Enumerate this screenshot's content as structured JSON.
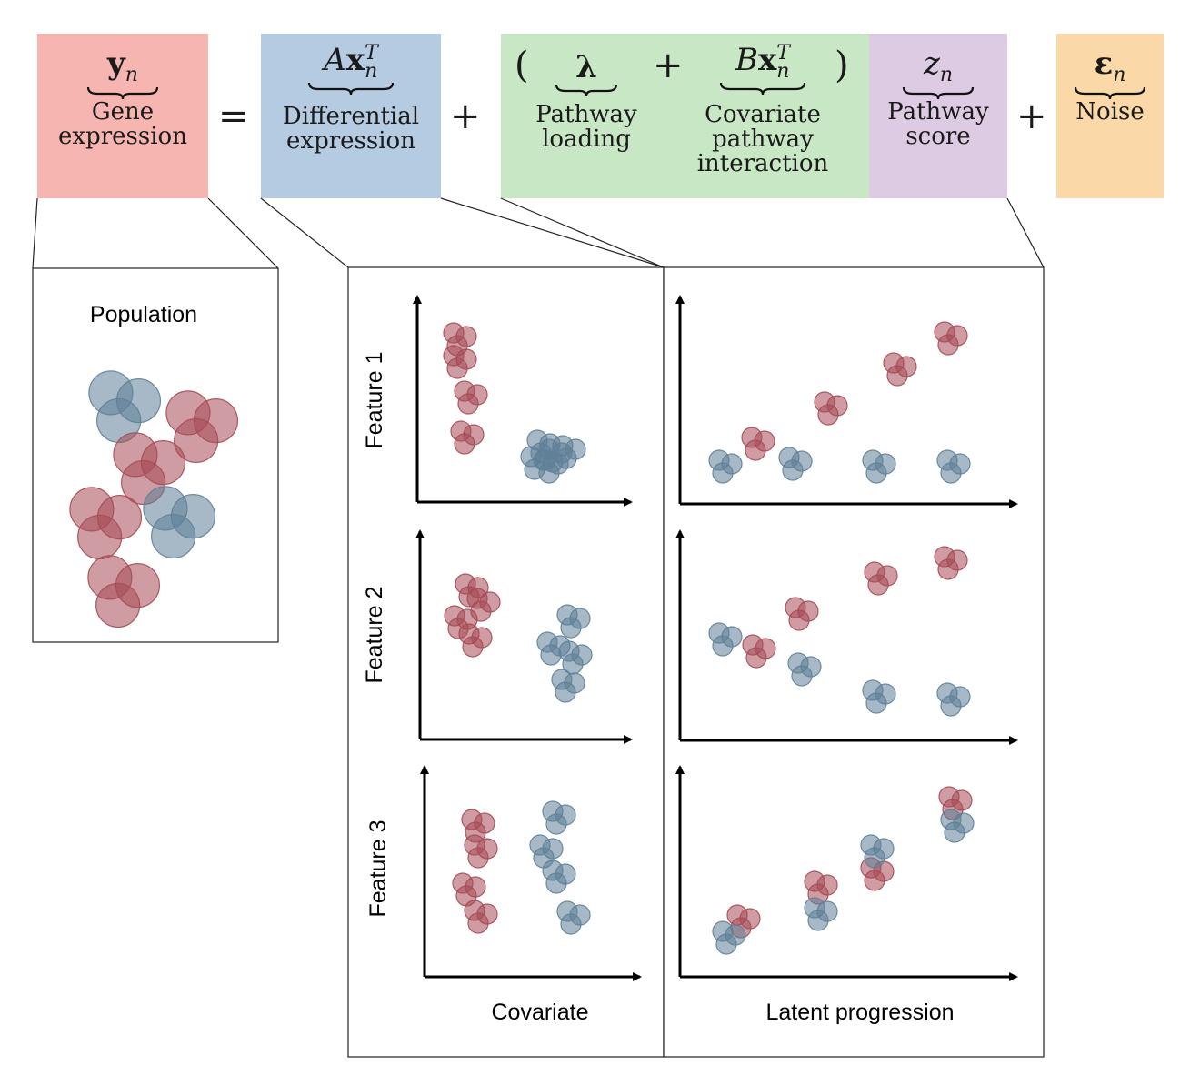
{
  "equation": {
    "gene": {
      "symbol_base": "y",
      "symbol_sub": "n",
      "label": "Gene\nexpression",
      "color": "#f6b5b1"
    },
    "equals": "=",
    "diff": {
      "symbol_A": "A",
      "symbol_base": "x",
      "symbol_sub": "n",
      "symbol_sup": "T",
      "label": "Differential\nexpression",
      "color": "#b5cbe2"
    },
    "plus1": "+",
    "paren_open": "(",
    "loading": {
      "symbol": "λ",
      "label": "Pathway\nloading",
      "color": "#c8e7c4"
    },
    "plus_inner": "+",
    "covariate": {
      "symbol_B": "B",
      "symbol_base": "x",
      "symbol_sub": "n",
      "symbol_sup": "T",
      "label": "Covariate\npathway\ninteraction"
    },
    "paren_close": ")",
    "score": {
      "symbol_base": "z",
      "symbol_sub": "n",
      "label": "Pathway\nscore",
      "color": "#dccbe2"
    },
    "plus2": "+",
    "noise": {
      "symbol_base": "ε",
      "symbol_sub": "n",
      "label": "Noise",
      "color": "#fad8a8"
    }
  },
  "population_panel": {
    "title": "Population"
  },
  "feature_labels": [
    "Feature 1",
    "Feature 2",
    "Feature 3"
  ],
  "axis_labels": {
    "covariate": "Covariate",
    "latent": "Latent progression"
  },
  "colors": {
    "red_point": "#a64b55",
    "blue_point": "#5f7f98"
  }
}
